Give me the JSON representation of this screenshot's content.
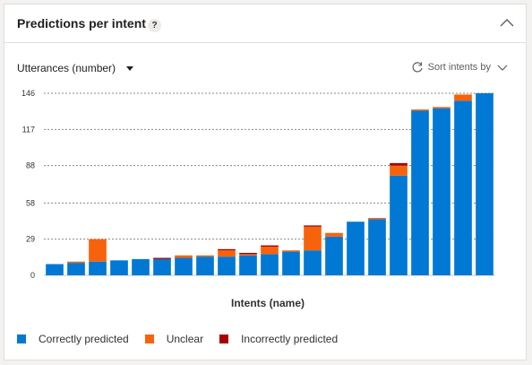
{
  "card": {
    "title": "Predictions per intent",
    "help": "?"
  },
  "toolbar": {
    "measure": "Utterances (number)",
    "sort": "Sort intents by"
  },
  "colors": {
    "correct": "#0078d4",
    "unclear": "#f7630c",
    "incorrect": "#a80000"
  },
  "chart_data": {
    "type": "bar",
    "stacked": true,
    "xlabel": "Intents (name)",
    "ylabel": "",
    "ylim": [
      0,
      146
    ],
    "yticks": [
      0,
      29,
      58,
      88,
      117,
      146
    ],
    "grid": true,
    "legend": "bottom-left",
    "series": [
      {
        "name": "Correctly predicted",
        "values": [
          9,
          10,
          11,
          12,
          13,
          13,
          14,
          15,
          15,
          16,
          17,
          19,
          20,
          31,
          43,
          45,
          80,
          132,
          134,
          140,
          146
        ]
      },
      {
        "name": "Unclear",
        "values": [
          0,
          1,
          18,
          0,
          0,
          0,
          2,
          1,
          5,
          1,
          6,
          1,
          19,
          3,
          0,
          1,
          8,
          1,
          1,
          5,
          0
        ]
      },
      {
        "name": "Incorrectly predicted",
        "values": [
          0,
          0,
          0,
          0,
          0,
          1,
          0,
          0,
          1,
          1,
          1,
          0,
          1,
          0,
          0,
          0,
          2,
          0,
          0,
          0,
          0
        ]
      }
    ]
  }
}
